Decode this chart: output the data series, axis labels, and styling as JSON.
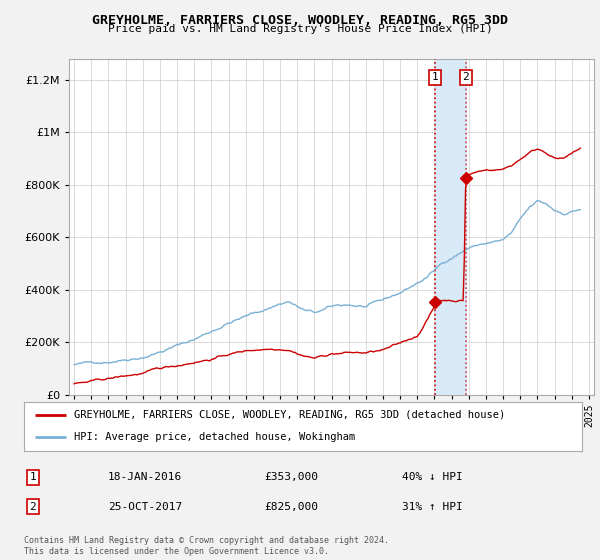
{
  "title": "GREYHOLME, FARRIERS CLOSE, WOODLEY, READING, RG5 3DD",
  "subtitle": "Price paid vs. HM Land Registry's House Price Index (HPI)",
  "legend_label_red": "GREYHOLME, FARRIERS CLOSE, WOODLEY, READING, RG5 3DD (detached house)",
  "legend_label_blue": "HPI: Average price, detached house, Wokingham",
  "annotation1_date": "18-JAN-2016",
  "annotation1_price": "£353,000",
  "annotation1_hpi": "40% ↓ HPI",
  "annotation2_date": "25-OCT-2017",
  "annotation2_price": "£825,000",
  "annotation2_hpi": "31% ↑ HPI",
  "copyright": "Contains HM Land Registry data © Crown copyright and database right 2024.\nThis data is licensed under the Open Government Licence v3.0.",
  "xlim_start": 1994.7,
  "xlim_end": 2025.3,
  "ylim_bottom": 0,
  "ylim_top": 1280000,
  "event1_x": 2016.05,
  "event2_x": 2017.82,
  "event1_y": 353000,
  "event2_y": 825000,
  "red_color": "#cc0000",
  "blue_color": "#7ab0d4",
  "shade_color": "#d8eaf7",
  "background_color": "#f2f2f2",
  "plot_bg": "#ffffff",
  "yticks": [
    0,
    200000,
    400000,
    600000,
    800000,
    1000000,
    1200000
  ]
}
